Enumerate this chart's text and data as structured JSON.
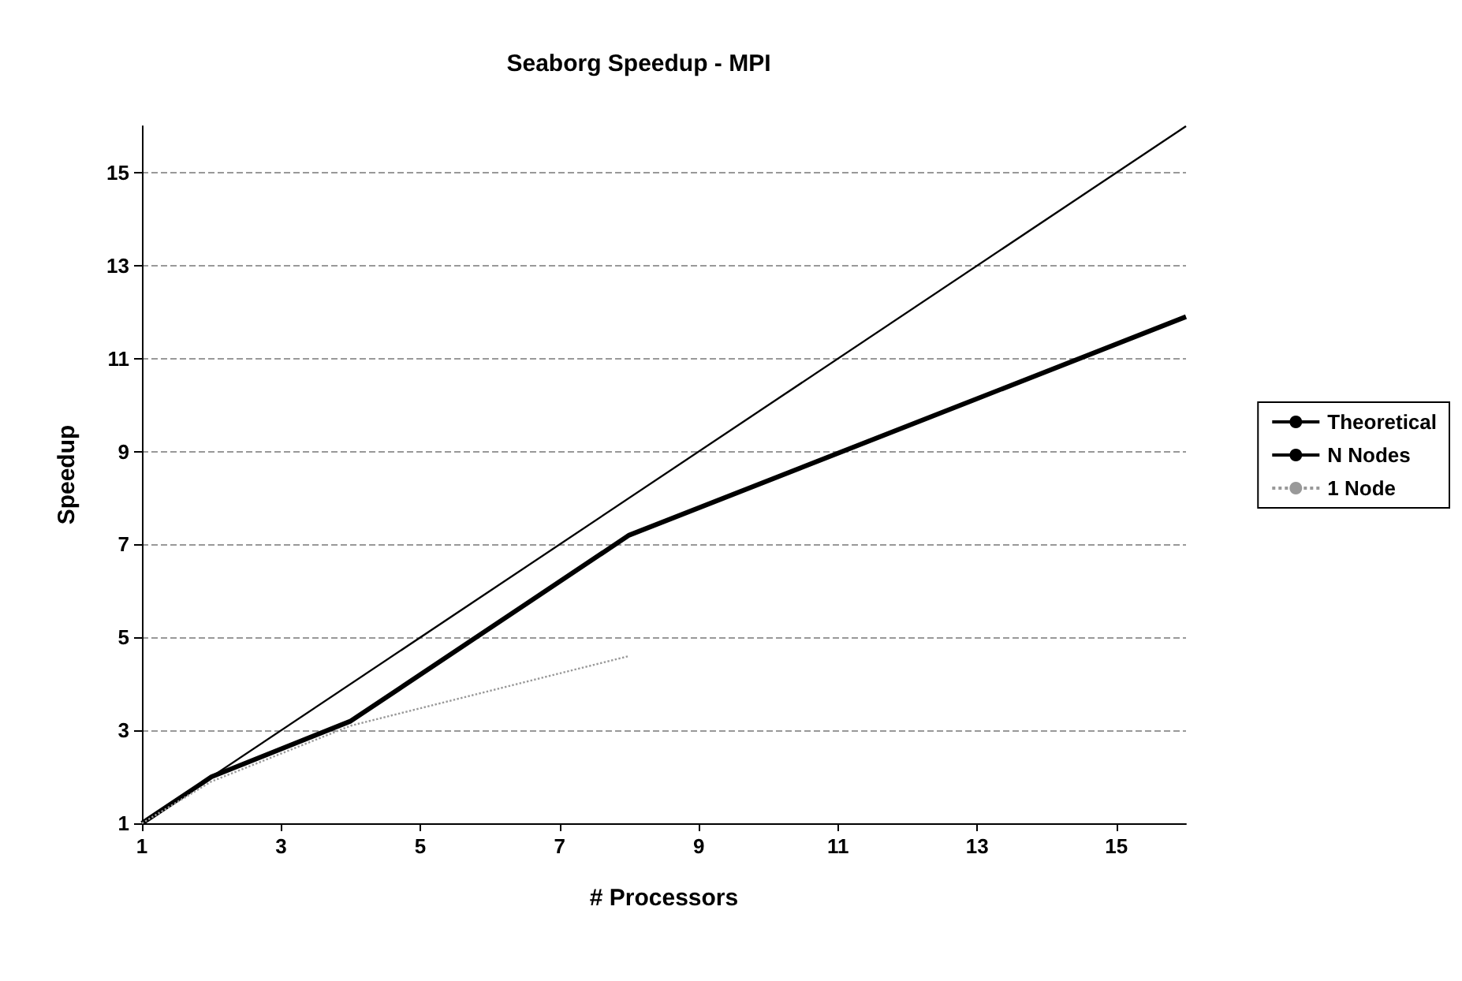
{
  "chart_data": {
    "type": "line",
    "title": "Seaborg Speedup - MPI",
    "xlabel": "# Processors",
    "ylabel": "Speedup",
    "xlim": [
      1,
      16
    ],
    "xticks": [
      1,
      3,
      5,
      7,
      9,
      11,
      13,
      15
    ],
    "ylim": [
      1,
      16
    ],
    "yticks": [
      1,
      3,
      5,
      7,
      9,
      11,
      13,
      15
    ],
    "grid": "y",
    "legend": "right",
    "marker": "none",
    "series": [
      {
        "name": "Theoretical",
        "color": "#000000",
        "x": [
          1,
          16
        ],
        "values": [
          1,
          16
        ],
        "line_style": "solid"
      },
      {
        "name": "N Nodes",
        "color": "#000000",
        "x": [
          1,
          2,
          4,
          8,
          16
        ],
        "values": [
          1,
          2.0,
          3.2,
          7.2,
          11.9
        ],
        "line_style": "solid"
      },
      {
        "name": "1 Node",
        "color": "#999999",
        "x": [
          1,
          2,
          4,
          8
        ],
        "values": [
          1,
          1.9,
          3.1,
          4.6
        ],
        "line_style": "dotted"
      }
    ]
  }
}
